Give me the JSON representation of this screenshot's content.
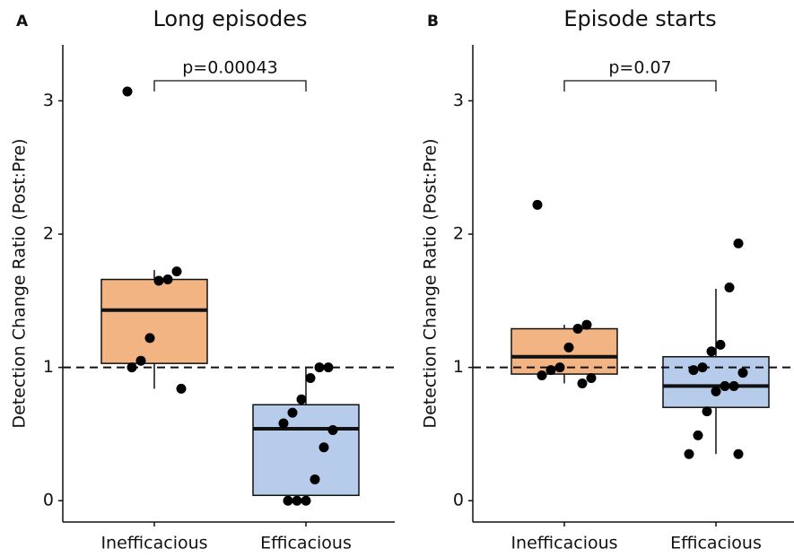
{
  "chart_data": [
    {
      "type": "box",
      "panel": "A",
      "title": "Long episodes",
      "ylabel": "Detection Change Ratio (Post:Pre)",
      "categories": [
        "Inefficacious",
        "Efficacious"
      ],
      "colors": [
        "#f3b484",
        "#b7cbea"
      ],
      "boxes": [
        {
          "whislo": 0.84,
          "q1": 1.03,
          "med": 1.43,
          "q3": 1.66,
          "whishi": 1.73
        },
        {
          "whislo": 0,
          "q1": 0.04,
          "med": 0.54,
          "q3": 0.72,
          "whishi": 1.0
        }
      ],
      "points": [
        [
          3.07,
          1.72,
          1.66,
          1.65,
          1.22,
          1.05,
          1.0,
          0.84
        ],
        [
          1.0,
          1.0,
          0.92,
          0.76,
          0.66,
          0.58,
          0.53,
          0.4,
          0.16,
          0,
          0,
          0
        ]
      ],
      "annotation": "p=0.00043",
      "hline": 1,
      "ylim": [
        -0.16,
        3.42
      ],
      "yticks": [
        0,
        1,
        2,
        3
      ]
    },
    {
      "type": "box",
      "panel": "B",
      "title": "Episode starts",
      "ylabel": "Detection Change Ratio (Post:Pre)",
      "categories": [
        "Inefficacious",
        "Efficacious"
      ],
      "colors": [
        "#f3b484",
        "#b7cbea"
      ],
      "boxes": [
        {
          "whislo": 0.88,
          "q1": 0.95,
          "med": 1.08,
          "q3": 1.29,
          "whishi": 1.32
        },
        {
          "whislo": 0.35,
          "q1": 0.7,
          "med": 0.86,
          "q3": 1.08,
          "whishi": 1.59
        }
      ],
      "points": [
        [
          2.22,
          1.32,
          1.29,
          1.15,
          1.0,
          0.98,
          0.94,
          0.92,
          0.88
        ],
        [
          1.93,
          1.6,
          1.17,
          1.12,
          1.0,
          0.98,
          0.96,
          0.86,
          0.86,
          0.82,
          0.67,
          0.49,
          0.35,
          0.35
        ]
      ],
      "annotation": "p=0.07",
      "hline": 1,
      "ylim": [
        -0.16,
        3.42
      ],
      "yticks": [
        0,
        1,
        2,
        3
      ]
    }
  ]
}
